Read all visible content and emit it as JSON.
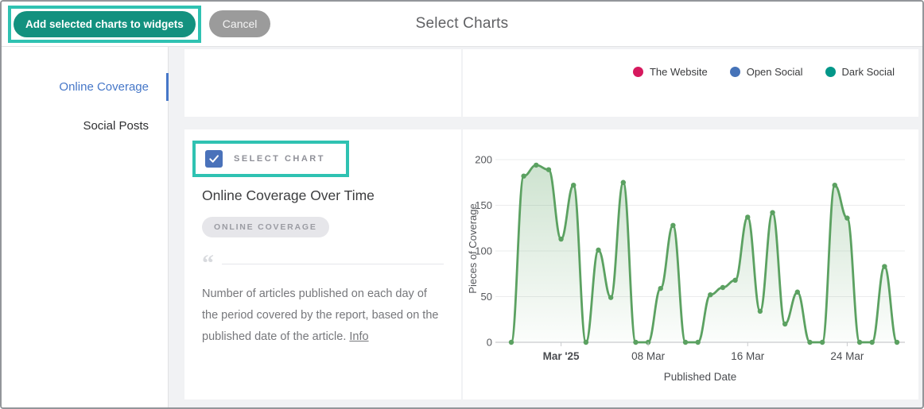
{
  "header": {
    "add_button_label": "Add selected charts to widgets",
    "cancel_button_label": "Cancel",
    "title": "Select Charts"
  },
  "sidebar": {
    "items": [
      {
        "label": "Online Coverage",
        "active": true
      },
      {
        "label": "Social Posts",
        "active": false
      }
    ]
  },
  "legend": {
    "items": [
      {
        "label": "The Website",
        "color": "#d6195e"
      },
      {
        "label": "Open Social",
        "color": "#4673b8"
      },
      {
        "label": "Dark Social",
        "color": "#029789"
      }
    ]
  },
  "chart_card": {
    "select_label": "SELECT CHART",
    "checked": true,
    "title": "Online Coverage Over Time",
    "badge": "ONLINE COVERAGE",
    "description": "Number of articles published on each day of the period covered by the report, based on the published date of the article.",
    "info_link": "Info"
  },
  "chart_data": {
    "type": "area",
    "title": "",
    "xlabel": "Published Date",
    "ylabel": "Pieces of Coverage",
    "ylim": [
      0,
      200
    ],
    "yticks": [
      0,
      50,
      100,
      150,
      200
    ],
    "grid": true,
    "line_color": "#5ba161",
    "fill": "green-gradient",
    "x": [
      "25 Feb",
      "26 Feb",
      "27 Feb",
      "28 Feb",
      "01 Mar",
      "02 Mar",
      "03 Mar",
      "04 Mar",
      "05 Mar",
      "06 Mar",
      "07 Mar",
      "08 Mar",
      "09 Mar",
      "10 Mar",
      "11 Mar",
      "12 Mar",
      "13 Mar",
      "14 Mar",
      "15 Mar",
      "16 Mar",
      "17 Mar",
      "18 Mar",
      "19 Mar",
      "20 Mar",
      "21 Mar",
      "22 Mar",
      "23 Mar",
      "24 Mar",
      "25 Mar",
      "26 Mar",
      "27 Mar",
      "28 Mar"
    ],
    "values": [
      0,
      182,
      194,
      189,
      113,
      172,
      0,
      101,
      49,
      175,
      0,
      0,
      59,
      128,
      0,
      0,
      52,
      60,
      68,
      137,
      34,
      142,
      20,
      55,
      0,
      0,
      172,
      136,
      0,
      0,
      83,
      0
    ],
    "xticks": [
      {
        "index": 4,
        "label": "Mar '25",
        "bold": true
      },
      {
        "index": 11,
        "label": "08 Mar",
        "bold": false
      },
      {
        "index": 19,
        "label": "16 Mar",
        "bold": false
      },
      {
        "index": 27,
        "label": "24 Mar",
        "bold": false
      }
    ]
  },
  "colors": {
    "annotation": "#2fc2b2",
    "primary_button": "#13917f",
    "cancel_button": "#9b9b9b",
    "active_link": "#4677c8",
    "checkbox": "#4a72ba",
    "chart_line": "#5ba161"
  }
}
